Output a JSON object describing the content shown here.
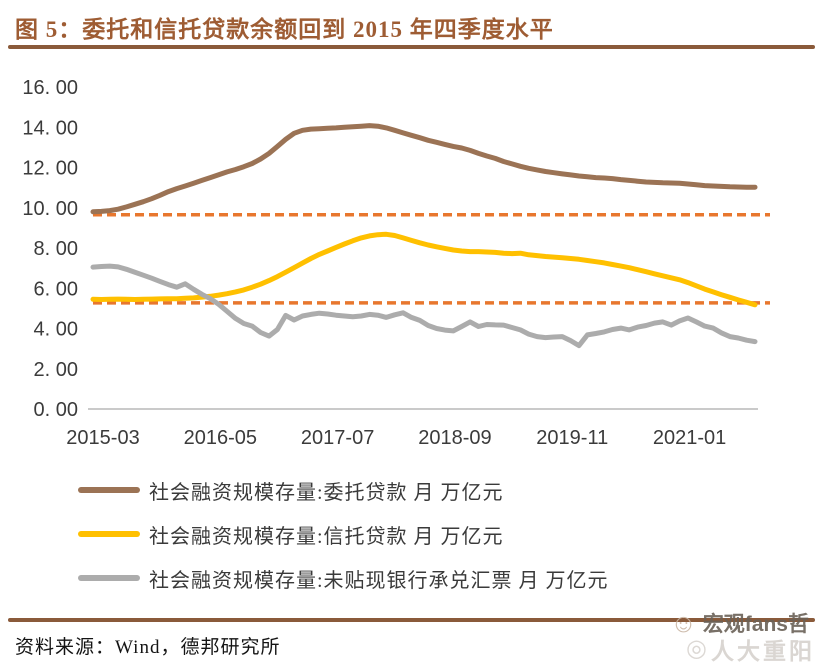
{
  "header": {
    "title": "图 5：委托和信托贷款余额回到 2015 年四季度水平"
  },
  "footer": {
    "source": "资料来源：Wind，德邦研究所"
  },
  "watermark": {
    "line1": "宏观fans哲",
    "line2": "人大重阳"
  },
  "colors": {
    "title_brown": "#9e5c33",
    "divider_brown": "#8a5a3a",
    "axis_text": "#3b3b3b"
  },
  "chart_data": {
    "type": "line",
    "title": "委托和信托贷款余额回到 2015 年四季度水平",
    "xlabel": "",
    "ylabel": "",
    "unit": "万亿元",
    "ylim": [
      0,
      16
    ],
    "grid": false,
    "legend_position": "bottom-left",
    "x_ticks": [
      "2015-03",
      "2016-05",
      "2017-07",
      "2018-09",
      "2019-11",
      "2021-01"
    ],
    "x_tick_indices": [
      0,
      14,
      28,
      42,
      56,
      70
    ],
    "y_ticks": [
      "0. 00",
      "2. 00",
      "4. 00",
      "6. 00",
      "8. 00",
      "10. 00",
      "12. 00",
      "14. 00",
      "16. 00"
    ],
    "y_tick_values": [
      0,
      2,
      4,
      6,
      8,
      10,
      12,
      14,
      16
    ],
    "x": [
      "2015-03",
      "2015-04",
      "2015-05",
      "2015-06",
      "2015-07",
      "2015-08",
      "2015-09",
      "2015-10",
      "2015-11",
      "2015-12",
      "2016-01",
      "2016-02",
      "2016-03",
      "2016-04",
      "2016-05",
      "2016-06",
      "2016-07",
      "2016-08",
      "2016-09",
      "2016-10",
      "2016-11",
      "2016-12",
      "2017-01",
      "2017-02",
      "2017-03",
      "2017-04",
      "2017-05",
      "2017-06",
      "2017-07",
      "2017-08",
      "2017-09",
      "2017-10",
      "2017-11",
      "2017-12",
      "2018-01",
      "2018-02",
      "2018-03",
      "2018-04",
      "2018-05",
      "2018-06",
      "2018-07",
      "2018-08",
      "2018-09",
      "2018-10",
      "2018-11",
      "2018-12",
      "2019-01",
      "2019-02",
      "2019-03",
      "2019-04",
      "2019-05",
      "2019-06",
      "2019-07",
      "2019-08",
      "2019-09",
      "2019-10",
      "2019-11",
      "2019-12",
      "2020-01",
      "2020-02",
      "2020-03",
      "2020-04",
      "2020-05",
      "2020-06",
      "2020-07",
      "2020-08",
      "2020-09",
      "2020-10",
      "2020-11",
      "2020-12",
      "2021-01",
      "2021-02",
      "2021-03",
      "2021-04",
      "2021-05",
      "2021-06",
      "2021-07",
      "2021-08",
      "2021-09",
      "2021-10"
    ],
    "series": [
      {
        "name": "社会融资规模存量:委托贷款 月 万亿元",
        "color": "#9B7355",
        "values": [
          9.8,
          9.82,
          9.86,
          9.93,
          10.04,
          10.17,
          10.3,
          10.45,
          10.62,
          10.8,
          10.95,
          11.08,
          11.22,
          11.36,
          11.5,
          11.64,
          11.78,
          11.9,
          12.04,
          12.2,
          12.42,
          12.7,
          13.05,
          13.4,
          13.7,
          13.85,
          13.91,
          13.93,
          13.95,
          13.97,
          14.0,
          14.02,
          14.05,
          14.08,
          14.05,
          13.97,
          13.85,
          13.72,
          13.6,
          13.48,
          13.35,
          13.25,
          13.15,
          13.05,
          12.97,
          12.85,
          12.7,
          12.57,
          12.45,
          12.3,
          12.18,
          12.06,
          11.96,
          11.88,
          11.8,
          11.74,
          11.68,
          11.63,
          11.58,
          11.54,
          11.5,
          11.48,
          11.45,
          11.4,
          11.36,
          11.32,
          11.28,
          11.26,
          11.24,
          11.23,
          11.22,
          11.18,
          11.14,
          11.1,
          11.08,
          11.06,
          11.04,
          11.03,
          11.02,
          11.02
        ]
      },
      {
        "name": "社会融资规模存量:信托贷款 月 万亿元",
        "color": "#FFC000",
        "values": [
          5.45,
          5.44,
          5.45,
          5.46,
          5.45,
          5.44,
          5.45,
          5.46,
          5.47,
          5.48,
          5.48,
          5.5,
          5.52,
          5.56,
          5.6,
          5.66,
          5.73,
          5.82,
          5.92,
          6.05,
          6.2,
          6.38,
          6.58,
          6.8,
          7.02,
          7.25,
          7.48,
          7.68,
          7.85,
          8.03,
          8.2,
          8.36,
          8.5,
          8.6,
          8.66,
          8.68,
          8.62,
          8.5,
          8.38,
          8.26,
          8.15,
          8.06,
          7.98,
          7.9,
          7.85,
          7.82,
          7.82,
          7.8,
          7.78,
          7.74,
          7.72,
          7.74,
          7.66,
          7.62,
          7.58,
          7.55,
          7.52,
          7.48,
          7.44,
          7.38,
          7.32,
          7.26,
          7.18,
          7.1,
          7.02,
          6.92,
          6.82,
          6.72,
          6.62,
          6.52,
          6.42,
          6.28,
          6.12,
          5.96,
          5.82,
          5.68,
          5.55,
          5.42,
          5.3,
          5.18
        ]
      },
      {
        "name": "社会融资规模存量:未贴现银行承兑汇票 月 万亿元",
        "color": "#ACACAC",
        "values": [
          7.05,
          7.08,
          7.1,
          7.06,
          6.94,
          6.8,
          6.65,
          6.5,
          6.34,
          6.18,
          6.05,
          6.22,
          5.95,
          5.7,
          5.48,
          5.2,
          4.85,
          4.5,
          4.25,
          4.12,
          3.8,
          3.62,
          3.95,
          4.65,
          4.42,
          4.62,
          4.7,
          4.76,
          4.72,
          4.66,
          4.62,
          4.58,
          4.62,
          4.7,
          4.66,
          4.55,
          4.68,
          4.78,
          4.55,
          4.4,
          4.15,
          4.0,
          3.92,
          3.88,
          4.1,
          4.33,
          4.1,
          4.2,
          4.18,
          4.17,
          4.05,
          3.93,
          3.72,
          3.6,
          3.55,
          3.58,
          3.6,
          3.4,
          3.15,
          3.68,
          3.75,
          3.83,
          3.95,
          4.02,
          3.93,
          4.07,
          4.15,
          4.27,
          4.33,
          4.17,
          4.38,
          4.52,
          4.33,
          4.12,
          4.02,
          3.78,
          3.6,
          3.53,
          3.42,
          3.35
        ]
      }
    ],
    "reference_lines": [
      {
        "value": 9.65,
        "color": "#E8772E",
        "style": "dashed"
      },
      {
        "value": 5.27,
        "color": "#E8772E",
        "style": "dashed"
      }
    ]
  }
}
